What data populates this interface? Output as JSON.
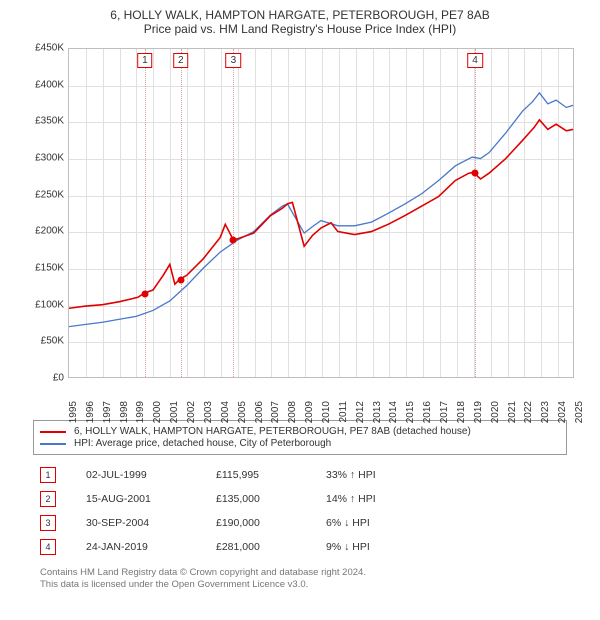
{
  "title": {
    "line1": "6, HOLLY WALK, HAMPTON HARGATE, PETERBOROUGH, PE7 8AB",
    "line2": "Price paid vs. HM Land Registry's House Price Index (HPI)"
  },
  "chart": {
    "type": "line",
    "background_color": "#ffffff",
    "grid_color": "#e0e0e0",
    "border_color": "#bfbfbf",
    "x": {
      "min": 1995,
      "max": 2025,
      "ticks": [
        1995,
        1996,
        1997,
        1998,
        1999,
        2000,
        2001,
        2002,
        2003,
        2004,
        2005,
        2006,
        2007,
        2008,
        2009,
        2010,
        2011,
        2012,
        2013,
        2014,
        2015,
        2016,
        2017,
        2018,
        2019,
        2020,
        2021,
        2022,
        2023,
        2024,
        2025
      ]
    },
    "y": {
      "min": 0,
      "max": 450000,
      "ticks": [
        0,
        50000,
        100000,
        150000,
        200000,
        250000,
        300000,
        350000,
        400000,
        450000
      ],
      "prefix": "£",
      "k_suffix": "K"
    },
    "series": [
      {
        "name": "property",
        "label": "6, HOLLY WALK, HAMPTON HARGATE, PETERBOROUGH, PE7 8AB (detached house)",
        "color": "#e00000",
        "width": 1.6,
        "points": [
          [
            1995,
            95000
          ],
          [
            1996,
            98000
          ],
          [
            1997,
            100000
          ],
          [
            1998,
            104000
          ],
          [
            1999.1,
            110000
          ],
          [
            1999.5,
            115995
          ],
          [
            2000,
            120000
          ],
          [
            2000.6,
            140000
          ],
          [
            2001,
            155000
          ],
          [
            2001.3,
            128000
          ],
          [
            2001.6,
            135000
          ],
          [
            2002,
            140000
          ],
          [
            2003,
            163000
          ],
          [
            2004,
            192000
          ],
          [
            2004.3,
            210000
          ],
          [
            2004.75,
            190000
          ],
          [
            2005,
            190000
          ],
          [
            2006,
            198000
          ],
          [
            2007,
            222000
          ],
          [
            2007.7,
            232000
          ],
          [
            2008,
            238000
          ],
          [
            2008.3,
            240000
          ],
          [
            2009,
            180000
          ],
          [
            2009.5,
            195000
          ],
          [
            2010,
            205000
          ],
          [
            2010.6,
            212000
          ],
          [
            2011,
            200000
          ],
          [
            2012,
            196000
          ],
          [
            2013,
            200000
          ],
          [
            2014,
            210000
          ],
          [
            2015,
            222000
          ],
          [
            2016,
            235000
          ],
          [
            2017,
            248000
          ],
          [
            2018,
            270000
          ],
          [
            2018.8,
            280000
          ],
          [
            2019.07,
            281000
          ],
          [
            2019.5,
            272000
          ],
          [
            2020,
            280000
          ],
          [
            2021,
            300000
          ],
          [
            2022,
            325000
          ],
          [
            2022.7,
            343000
          ],
          [
            2023,
            353000
          ],
          [
            2023.5,
            340000
          ],
          [
            2024,
            347000
          ],
          [
            2024.6,
            338000
          ],
          [
            2025,
            340000
          ]
        ]
      },
      {
        "name": "hpi",
        "label": "HPI: Average price, detached house, City of Peterborough",
        "color": "#4a78c8",
        "width": 1.3,
        "points": [
          [
            1995,
            70000
          ],
          [
            1996,
            73000
          ],
          [
            1997,
            76000
          ],
          [
            1998,
            80000
          ],
          [
            1999,
            84000
          ],
          [
            2000,
            92000
          ],
          [
            2001,
            105000
          ],
          [
            2002,
            126000
          ],
          [
            2003,
            150000
          ],
          [
            2004,
            172000
          ],
          [
            2005,
            188000
          ],
          [
            2006,
            200000
          ],
          [
            2007,
            223000
          ],
          [
            2007.7,
            235000
          ],
          [
            2008,
            238000
          ],
          [
            2009,
            198000
          ],
          [
            2009.5,
            207000
          ],
          [
            2010,
            215000
          ],
          [
            2011,
            208000
          ],
          [
            2012,
            208000
          ],
          [
            2013,
            213000
          ],
          [
            2014,
            225000
          ],
          [
            2015,
            238000
          ],
          [
            2016,
            252000
          ],
          [
            2017,
            270000
          ],
          [
            2018,
            290000
          ],
          [
            2019,
            302000
          ],
          [
            2019.5,
            300000
          ],
          [
            2020,
            308000
          ],
          [
            2021,
            335000
          ],
          [
            2022,
            365000
          ],
          [
            2022.6,
            378000
          ],
          [
            2023,
            390000
          ],
          [
            2023.5,
            375000
          ],
          [
            2024,
            380000
          ],
          [
            2024.6,
            370000
          ],
          [
            2025,
            373000
          ]
        ]
      }
    ],
    "markers": [
      {
        "n": "1",
        "x": 1999.5,
        "y": 115995
      },
      {
        "n": "2",
        "x": 2001.63,
        "y": 135000
      },
      {
        "n": "3",
        "x": 2004.75,
        "y": 190000
      },
      {
        "n": "4",
        "x": 2019.07,
        "y": 281000
      }
    ],
    "marker_line_color": "#d9a0a0",
    "marker_box_border": "#e00000"
  },
  "legend": [
    {
      "color": "#e00000",
      "text": "6, HOLLY WALK, HAMPTON HARGATE, PETERBOROUGH, PE7 8AB (detached house)"
    },
    {
      "color": "#4a78c8",
      "text": "HPI: Average price, detached house, City of Peterborough"
    }
  ],
  "transactions": [
    {
      "n": "1",
      "date": "02-JUL-1999",
      "price": "£115,995",
      "diff": "33%",
      "dir": "up",
      "suffix": "HPI"
    },
    {
      "n": "2",
      "date": "15-AUG-2001",
      "price": "£135,000",
      "diff": "14%",
      "dir": "up",
      "suffix": "HPI"
    },
    {
      "n": "3",
      "date": "30-SEP-2004",
      "price": "£190,000",
      "diff": "6%",
      "dir": "down",
      "suffix": "HPI"
    },
    {
      "n": "4",
      "date": "24-JAN-2019",
      "price": "£281,000",
      "diff": "9%",
      "dir": "down",
      "suffix": "HPI"
    }
  ],
  "footer": {
    "line1": "Contains HM Land Registry data © Crown copyright and database right 2024.",
    "line2": "This data is licensed under the Open Government Licence v3.0."
  }
}
